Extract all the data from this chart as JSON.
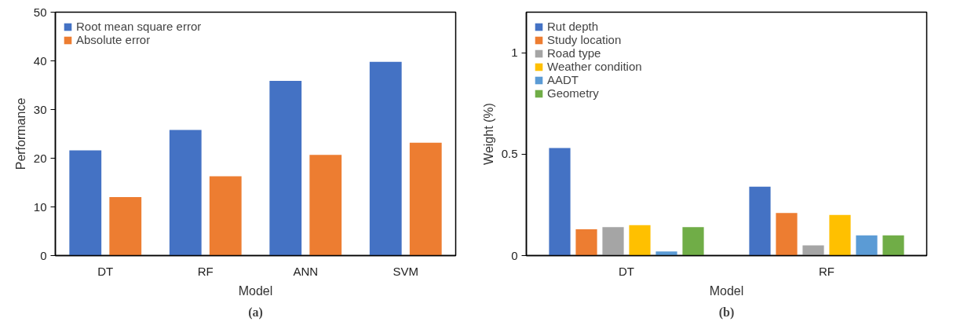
{
  "chart_data": [
    {
      "type": "bar",
      "xlabel": "Model",
      "ylabel": "Performance",
      "categories": [
        "DT",
        "RF",
        "ANN",
        "SVM"
      ],
      "series": [
        {
          "name": "Root mean square error",
          "color": "#4472c4",
          "values": [
            21.6,
            25.8,
            35.9,
            39.8
          ]
        },
        {
          "name": "Absolute error",
          "color": "#ed7d31",
          "values": [
            12.0,
            16.3,
            20.7,
            23.2
          ]
        }
      ],
      "ylim": [
        0,
        50
      ],
      "yticks": [
        0,
        10,
        20,
        30,
        40,
        50
      ],
      "grid": false,
      "legend": "top left",
      "annotations": [
        "(a)"
      ]
    },
    {
      "type": "bar",
      "xlabel": "Model",
      "ylabel": "Weight (%)",
      "categories": [
        "DT",
        "RF"
      ],
      "series": [
        {
          "name": "Rut depth",
          "color": "#4472c4",
          "values": [
            0.53,
            0.34
          ]
        },
        {
          "name": "Study location",
          "color": "#ed7d31",
          "values": [
            0.13,
            0.21
          ]
        },
        {
          "name": "Road type",
          "color": "#a5a5a5",
          "values": [
            0.14,
            0.05
          ]
        },
        {
          "name": "Weather condition",
          "color": "#ffc000",
          "values": [
            0.15,
            0.2
          ]
        },
        {
          "name": "AADT",
          "color": "#5b9bd5",
          "values": [
            0.02,
            0.1
          ]
        },
        {
          "name": "Geometry",
          "color": "#70ad47",
          "values": [
            0.14,
            0.1
          ]
        }
      ],
      "ylim": [
        0,
        1.2
      ],
      "yticks": [
        0,
        0.5,
        1
      ],
      "grid": false,
      "legend": "top left",
      "annotations": [
        "(b)"
      ]
    }
  ]
}
